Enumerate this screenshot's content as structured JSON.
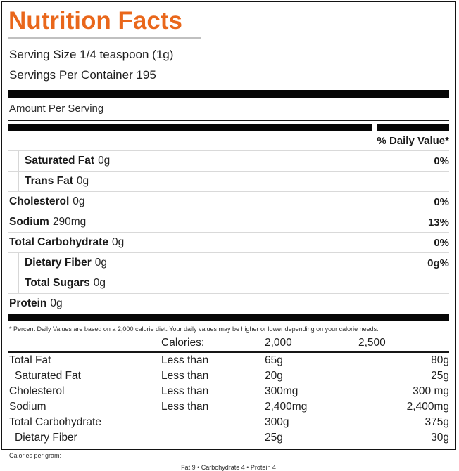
{
  "label": {
    "title": "Nutrition Facts",
    "serving_size": "Serving Size 1/4 teaspoon (1g)",
    "servings_per_container": "Servings Per Container 195",
    "amount_per_serving": "Amount Per Serving",
    "daily_value_header": "% Daily Value*",
    "nutrients": [
      {
        "name": "Saturated Fat",
        "amount": "0g",
        "dv": "0%"
      },
      {
        "name": "Trans Fat",
        "amount": "0g",
        "dv": ""
      },
      {
        "name": "Cholesterol",
        "amount": "0g",
        "dv": "0%"
      },
      {
        "name": "Sodium",
        "amount": "290mg",
        "dv": "13%"
      },
      {
        "name": "Total Carbohydrate",
        "amount": "0g",
        "dv": "0%"
      },
      {
        "name": "Dietary Fiber",
        "amount": "0g",
        "dv": "0g%"
      },
      {
        "name": "Total Sugars",
        "amount": "0g",
        "dv": ""
      },
      {
        "name": "Protein",
        "amount": "0g",
        "dv": ""
      }
    ],
    "footnote": "* Percent Daily Values are based on a 2,000 calorie diet. Your daily values may be higher or lower depending on your calorie needs:",
    "reference_table": {
      "header": {
        "calories_label": "Calories:",
        "col_2000": "2,000",
        "col_2500": "2,500"
      },
      "rows": [
        {
          "label": "Total Fat",
          "qualifier": "Less than",
          "v2000": "65g",
          "v2500": "80g"
        },
        {
          "label": "Saturated Fat",
          "qualifier": "Less than",
          "v2000": "20g",
          "v2500": "25g"
        },
        {
          "label": "Cholesterol",
          "qualifier": "Less than",
          "v2000": "300mg",
          "v2500": "300 mg"
        },
        {
          "label": "Sodium",
          "qualifier": "Less than",
          "v2000": "2,400mg",
          "v2500": "2,400mg"
        },
        {
          "label": "Total Carbohydrate",
          "qualifier": "",
          "v2000": "300g",
          "v2500": "375g"
        },
        {
          "label": "Dietary Fiber",
          "qualifier": "",
          "v2000": "25g",
          "v2500": "30g"
        }
      ]
    },
    "calories_per_gram_label": "Calories per gram:",
    "calories_per_gram_values": "Fat 9 • Carbohydrate 4 • Protein 4",
    "colors": {
      "accent": "#E9671B",
      "bar": "#070707",
      "divider": "#D9D9D9"
    }
  }
}
